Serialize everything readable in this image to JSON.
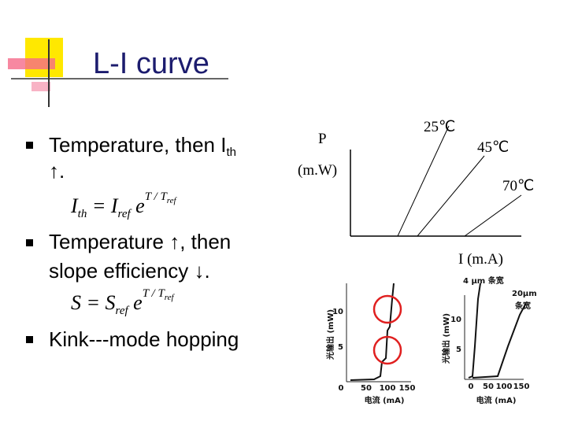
{
  "header": {
    "title": "L-I curve"
  },
  "bullets": [
    {
      "parts": [
        "Temperature, then I",
        "th",
        "↑",
        "."
      ]
    },
    {
      "parts": [
        "Temperature ",
        "↑",
        ", then",
        "slope efficiency ",
        "↓",
        "."
      ]
    },
    {
      "parts": [
        "Kink---mode hopping"
      ]
    }
  ],
  "equations": [
    {
      "parts": [
        "I",
        "th",
        " = I",
        "ref",
        " e",
        "T / T",
        "ref"
      ]
    },
    {
      "parts": [
        "S",
        " = S",
        "ref",
        " e",
        "T / T",
        "ref"
      ]
    }
  ],
  "diagram": {
    "y_label": "P",
    "y_unit": "(m.W)",
    "x_label": "I (m.A)",
    "curves": [
      "25℃",
      "45℃",
      "70℃"
    ]
  },
  "figures": [
    {
      "y_label": "光输出 (mW)",
      "x_label": "电流 (mA)",
      "yticks": [
        "10",
        "5"
      ],
      "xticks": [
        "0",
        "50",
        "100",
        "150"
      ]
    },
    {
      "y_label": "光输出 (mW)",
      "x_label": "电流 (mA)",
      "yticks": [
        "10",
        "5"
      ],
      "xticks": [
        "0",
        "50",
        "100",
        "150"
      ],
      "notes": [
        "4 μm 条宽",
        "20μm",
        "条宽"
      ]
    }
  ]
}
